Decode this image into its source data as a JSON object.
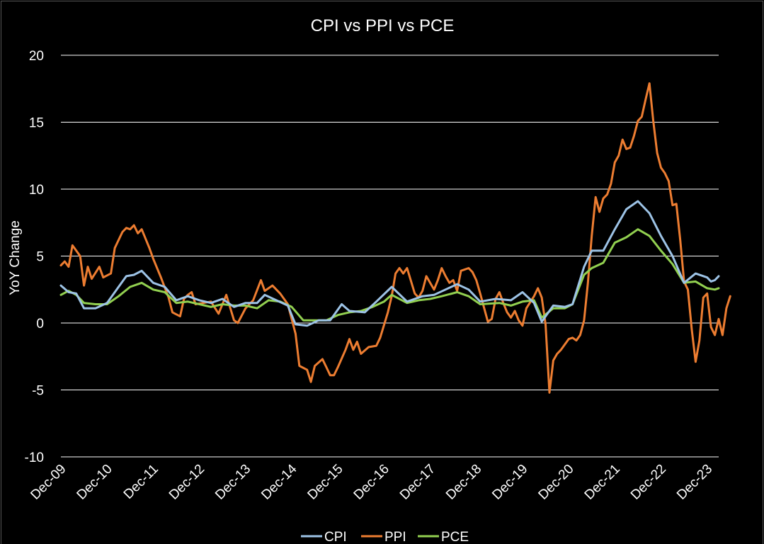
{
  "chart_data": {
    "type": "line",
    "title": "CPI vs PPI vs PCE",
    "ylabel": "YoY Change",
    "xlabel": "",
    "ylim": [
      -10,
      20
    ],
    "yticks": [
      20,
      15,
      10,
      5,
      0,
      -5,
      -10
    ],
    "grid": true,
    "legend_position": "bottom",
    "x_range": [
      "2009-12",
      "2024-03"
    ],
    "xtick_labels": [
      "Dec-09",
      "Dec-10",
      "Dec-11",
      "Dec-12",
      "Dec-13",
      "Dec-14",
      "Dec-15",
      "Dec-16",
      "Dec-17",
      "Dec-18",
      "Dec-19",
      "Dec-20",
      "Dec-21",
      "Dec-22",
      "Dec-23"
    ],
    "colors": {
      "CPI": "#9dc3e6",
      "PPI": "#ed7d31",
      "PCE": "#92d050",
      "grid": "#ffffff",
      "background": "#000000"
    },
    "series": [
      {
        "name": "CPI",
        "points": [
          [
            "2009-12",
            2.8
          ],
          [
            "2010-02",
            2.3
          ],
          [
            "2010-04",
            2.2
          ],
          [
            "2010-06",
            1.1
          ],
          [
            "2010-09",
            1.1
          ],
          [
            "2010-12",
            1.5
          ],
          [
            "2011-03",
            2.7
          ],
          [
            "2011-05",
            3.5
          ],
          [
            "2011-07",
            3.6
          ],
          [
            "2011-09",
            3.9
          ],
          [
            "2011-12",
            3.0
          ],
          [
            "2012-03",
            2.7
          ],
          [
            "2012-06",
            1.7
          ],
          [
            "2012-09",
            2.0
          ],
          [
            "2012-12",
            1.7
          ],
          [
            "2013-03",
            1.5
          ],
          [
            "2013-06",
            1.8
          ],
          [
            "2013-09",
            1.2
          ],
          [
            "2013-12",
            1.5
          ],
          [
            "2014-03",
            1.5
          ],
          [
            "2014-05",
            2.1
          ],
          [
            "2014-08",
            1.7
          ],
          [
            "2014-11",
            1.3
          ],
          [
            "2015-01",
            -0.1
          ],
          [
            "2015-04",
            -0.2
          ],
          [
            "2015-07",
            0.2
          ],
          [
            "2015-10",
            0.2
          ],
          [
            "2016-01",
            1.4
          ],
          [
            "2016-03",
            0.9
          ],
          [
            "2016-07",
            0.8
          ],
          [
            "2016-10",
            1.6
          ],
          [
            "2017-02",
            2.7
          ],
          [
            "2017-06",
            1.6
          ],
          [
            "2017-10",
            2.0
          ],
          [
            "2018-01",
            2.1
          ],
          [
            "2018-07",
            2.9
          ],
          [
            "2018-10",
            2.5
          ],
          [
            "2019-01",
            1.6
          ],
          [
            "2019-05",
            1.8
          ],
          [
            "2019-09",
            1.7
          ],
          [
            "2019-12",
            2.3
          ],
          [
            "2020-03",
            1.5
          ],
          [
            "2020-05",
            0.1
          ],
          [
            "2020-08",
            1.3
          ],
          [
            "2020-11",
            1.2
          ],
          [
            "2021-01",
            1.4
          ],
          [
            "2021-04",
            4.2
          ],
          [
            "2021-06",
            5.4
          ],
          [
            "2021-09",
            5.4
          ],
          [
            "2021-12",
            7.0
          ],
          [
            "2022-03",
            8.5
          ],
          [
            "2022-06",
            9.1
          ],
          [
            "2022-09",
            8.2
          ],
          [
            "2022-12",
            6.5
          ],
          [
            "2023-03",
            5.0
          ],
          [
            "2023-06",
            3.0
          ],
          [
            "2023-09",
            3.7
          ],
          [
            "2023-12",
            3.4
          ],
          [
            "2024-01",
            3.1
          ],
          [
            "2024-02",
            3.2
          ],
          [
            "2024-03",
            3.5
          ]
        ]
      },
      {
        "name": "PPI",
        "points": [
          [
            "2009-12",
            4.3
          ],
          [
            "2010-01",
            4.6
          ],
          [
            "2010-02",
            4.2
          ],
          [
            "2010-03",
            5.8
          ],
          [
            "2010-05",
            5.0
          ],
          [
            "2010-06",
            2.8
          ],
          [
            "2010-07",
            4.2
          ],
          [
            "2010-08",
            3.3
          ],
          [
            "2010-10",
            4.2
          ],
          [
            "2010-11",
            3.4
          ],
          [
            "2011-01",
            3.7
          ],
          [
            "2011-02",
            5.6
          ],
          [
            "2011-04",
            6.8
          ],
          [
            "2011-05",
            7.1
          ],
          [
            "2011-06",
            7.0
          ],
          [
            "2011-07",
            7.3
          ],
          [
            "2011-08",
            6.7
          ],
          [
            "2011-09",
            7.0
          ],
          [
            "2011-11",
            5.6
          ],
          [
            "2011-12",
            4.8
          ],
          [
            "2012-02",
            3.4
          ],
          [
            "2012-04",
            1.9
          ],
          [
            "2012-05",
            0.8
          ],
          [
            "2012-07",
            0.5
          ],
          [
            "2012-08",
            1.8
          ],
          [
            "2012-09",
            2.1
          ],
          [
            "2012-10",
            2.3
          ],
          [
            "2012-11",
            1.4
          ],
          [
            "2013-01",
            1.5
          ],
          [
            "2013-03",
            1.6
          ],
          [
            "2013-05",
            0.7
          ],
          [
            "2013-07",
            2.1
          ],
          [
            "2013-09",
            0.2
          ],
          [
            "2013-10",
            0.0
          ],
          [
            "2013-12",
            1.1
          ],
          [
            "2014-02",
            1.7
          ],
          [
            "2014-04",
            3.2
          ],
          [
            "2014-05",
            2.4
          ],
          [
            "2014-07",
            2.8
          ],
          [
            "2014-09",
            2.2
          ],
          [
            "2014-11",
            1.4
          ],
          [
            "2015-01",
            -0.8
          ],
          [
            "2015-02",
            -3.2
          ],
          [
            "2015-04",
            -3.5
          ],
          [
            "2015-05",
            -4.4
          ],
          [
            "2015-06",
            -3.2
          ],
          [
            "2015-08",
            -2.7
          ],
          [
            "2015-09",
            -3.3
          ],
          [
            "2015-10",
            -3.9
          ],
          [
            "2015-11",
            -3.9
          ],
          [
            "2015-12",
            -3.3
          ],
          [
            "2016-02",
            -2.0
          ],
          [
            "2016-03",
            -1.2
          ],
          [
            "2016-04",
            -2.0
          ],
          [
            "2016-05",
            -1.4
          ],
          [
            "2016-06",
            -2.3
          ],
          [
            "2016-08",
            -1.8
          ],
          [
            "2016-10",
            -1.7
          ],
          [
            "2016-11",
            -1.1
          ],
          [
            "2017-01",
            0.8
          ],
          [
            "2017-02",
            2.0
          ],
          [
            "2017-03",
            3.7
          ],
          [
            "2017-04",
            4.1
          ],
          [
            "2017-05",
            3.7
          ],
          [
            "2017-06",
            4.1
          ],
          [
            "2017-08",
            2.2
          ],
          [
            "2017-09",
            1.9
          ],
          [
            "2017-10",
            2.4
          ],
          [
            "2017-11",
            3.5
          ],
          [
            "2017-12",
            3.0
          ],
          [
            "2018-01",
            2.5
          ],
          [
            "2018-02",
            3.2
          ],
          [
            "2018-03",
            4.1
          ],
          [
            "2018-04",
            3.5
          ],
          [
            "2018-05",
            3.0
          ],
          [
            "2018-06",
            3.2
          ],
          [
            "2018-07",
            2.4
          ],
          [
            "2018-08",
            3.9
          ],
          [
            "2018-09",
            4.0
          ],
          [
            "2018-10",
            4.1
          ],
          [
            "2018-11",
            3.8
          ],
          [
            "2018-12",
            3.2
          ],
          [
            "2019-01",
            2.2
          ],
          [
            "2019-03",
            0.1
          ],
          [
            "2019-04",
            0.3
          ],
          [
            "2019-05",
            1.8
          ],
          [
            "2019-06",
            2.3
          ],
          [
            "2019-07",
            1.5
          ],
          [
            "2019-08",
            0.8
          ],
          [
            "2019-09",
            0.4
          ],
          [
            "2019-10",
            0.9
          ],
          [
            "2019-11",
            0.2
          ],
          [
            "2019-12",
            -0.2
          ],
          [
            "2020-01",
            1.1
          ],
          [
            "2020-03",
            2.0
          ],
          [
            "2020-04",
            2.6
          ],
          [
            "2020-05",
            1.9
          ],
          [
            "2020-06",
            -0.1
          ],
          [
            "2020-07",
            -5.2
          ],
          [
            "2020-08",
            -2.8
          ],
          [
            "2020-09",
            -2.3
          ],
          [
            "2020-10",
            -2.0
          ],
          [
            "2020-11",
            -1.6
          ],
          [
            "2020-12",
            -1.2
          ],
          [
            "2021-01",
            -1.1
          ],
          [
            "2021-02",
            -1.3
          ],
          [
            "2021-03",
            -0.9
          ],
          [
            "2021-04",
            0.2
          ],
          [
            "2021-05",
            3.0
          ],
          [
            "2021-06",
            6.5
          ],
          [
            "2021-07",
            9.4
          ],
          [
            "2021-08",
            8.3
          ],
          [
            "2021-09",
            9.3
          ],
          [
            "2021-10",
            9.6
          ],
          [
            "2021-11",
            10.4
          ],
          [
            "2021-12",
            12.0
          ],
          [
            "2022-01",
            12.5
          ],
          [
            "2022-02",
            13.7
          ],
          [
            "2022-03",
            13.0
          ],
          [
            "2022-04",
            13.1
          ],
          [
            "2022-05",
            14.0
          ],
          [
            "2022-06",
            15.1
          ],
          [
            "2022-07",
            15.4
          ],
          [
            "2022-08",
            16.7
          ],
          [
            "2022-09",
            17.9
          ],
          [
            "2022-10",
            15.1
          ],
          [
            "2022-11",
            12.7
          ],
          [
            "2022-12",
            11.6
          ],
          [
            "2023-01",
            11.2
          ],
          [
            "2023-02",
            10.6
          ],
          [
            "2023-03",
            8.8
          ],
          [
            "2023-04",
            8.9
          ],
          [
            "2023-05",
            6.2
          ],
          [
            "2023-06",
            3.1
          ],
          [
            "2023-07",
            2.5
          ],
          [
            "2023-08",
            -0.5
          ],
          [
            "2023-09",
            -2.9
          ],
          [
            "2023-10",
            -1.3
          ],
          [
            "2023-11",
            1.9
          ],
          [
            "2023-12",
            2.2
          ],
          [
            "2024-01",
            -0.3
          ],
          [
            "2024-02",
            -0.9
          ],
          [
            "2024-03",
            0.3
          ],
          [
            "2024-04",
            -0.9
          ],
          [
            "2024-05",
            1.1
          ],
          [
            "2024-06",
            2.0
          ]
        ]
      },
      {
        "name": "PCE",
        "points": [
          [
            "2009-12",
            2.1
          ],
          [
            "2010-02",
            2.4
          ],
          [
            "2010-04",
            2.1
          ],
          [
            "2010-06",
            1.5
          ],
          [
            "2010-09",
            1.4
          ],
          [
            "2010-12",
            1.4
          ],
          [
            "2011-03",
            2.0
          ],
          [
            "2011-06",
            2.7
          ],
          [
            "2011-09",
            3.0
          ],
          [
            "2011-12",
            2.5
          ],
          [
            "2012-03",
            2.3
          ],
          [
            "2012-06",
            1.5
          ],
          [
            "2012-09",
            1.6
          ],
          [
            "2012-12",
            1.4
          ],
          [
            "2013-03",
            1.2
          ],
          [
            "2013-06",
            1.4
          ],
          [
            "2013-09",
            1.3
          ],
          [
            "2013-12",
            1.3
          ],
          [
            "2014-03",
            1.1
          ],
          [
            "2014-06",
            1.7
          ],
          [
            "2014-09",
            1.6
          ],
          [
            "2014-12",
            1.2
          ],
          [
            "2015-03",
            0.2
          ],
          [
            "2015-06",
            0.2
          ],
          [
            "2015-09",
            0.2
          ],
          [
            "2015-12",
            0.6
          ],
          [
            "2016-03",
            0.8
          ],
          [
            "2016-06",
            0.9
          ],
          [
            "2016-09",
            1.2
          ],
          [
            "2016-12",
            1.6
          ],
          [
            "2017-02",
            2.1
          ],
          [
            "2017-06",
            1.5
          ],
          [
            "2017-09",
            1.7
          ],
          [
            "2017-12",
            1.8
          ],
          [
            "2018-03",
            2.0
          ],
          [
            "2018-07",
            2.3
          ],
          [
            "2018-10",
            2.0
          ],
          [
            "2019-01",
            1.4
          ],
          [
            "2019-06",
            1.5
          ],
          [
            "2019-09",
            1.3
          ],
          [
            "2019-12",
            1.6
          ],
          [
            "2020-03",
            1.7
          ],
          [
            "2020-05",
            0.4
          ],
          [
            "2020-08",
            1.1
          ],
          [
            "2020-11",
            1.1
          ],
          [
            "2021-01",
            1.4
          ],
          [
            "2021-04",
            3.6
          ],
          [
            "2021-06",
            4.1
          ],
          [
            "2021-09",
            4.5
          ],
          [
            "2021-12",
            6.0
          ],
          [
            "2022-03",
            6.4
          ],
          [
            "2022-06",
            7.0
          ],
          [
            "2022-09",
            6.5
          ],
          [
            "2022-12",
            5.4
          ],
          [
            "2023-03",
            4.4
          ],
          [
            "2023-06",
            3.0
          ],
          [
            "2023-09",
            3.1
          ],
          [
            "2023-12",
            2.6
          ],
          [
            "2024-02",
            2.5
          ],
          [
            "2024-03",
            2.6
          ]
        ]
      }
    ]
  }
}
